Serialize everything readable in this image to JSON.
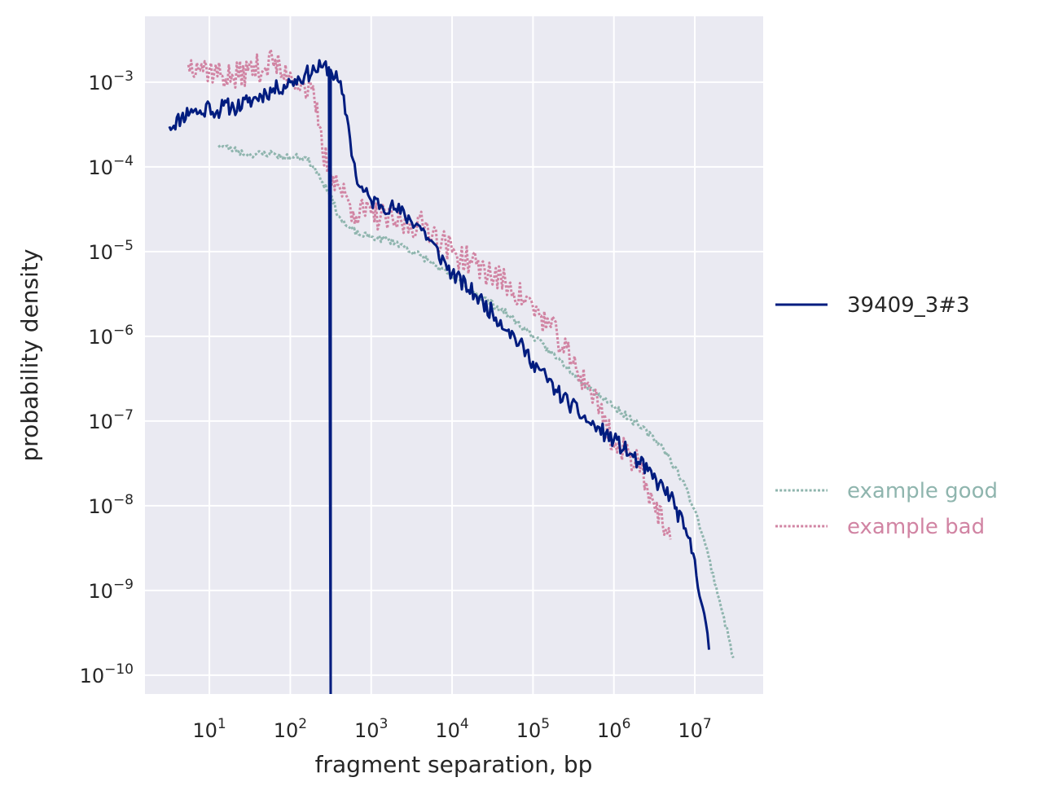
{
  "chart_data": {
    "type": "line",
    "title": "",
    "xlabel": "fragment separation, bp",
    "ylabel": "probability density",
    "xscale": "log",
    "yscale": "log",
    "xlim": [
      1.6,
      70000000
    ],
    "ylim": [
      6e-11,
      0.006
    ],
    "grid": true,
    "background": "#eaeaf2",
    "x_ticks": [
      {
        "value": 10,
        "base": "10",
        "exp": "1"
      },
      {
        "value": 100,
        "base": "10",
        "exp": "2"
      },
      {
        "value": 1000,
        "base": "10",
        "exp": "3"
      },
      {
        "value": 10000,
        "base": "10",
        "exp": "4"
      },
      {
        "value": 100000,
        "base": "10",
        "exp": "5"
      },
      {
        "value": 1000000,
        "base": "10",
        "exp": "6"
      },
      {
        "value": 10000000,
        "base": "10",
        "exp": "7"
      }
    ],
    "y_ticks": [
      {
        "value": 0.001,
        "base": "10",
        "exp": "−3"
      },
      {
        "value": 0.0001,
        "base": "10",
        "exp": "−4"
      },
      {
        "value": 1e-05,
        "base": "10",
        "exp": "−5"
      },
      {
        "value": 1e-06,
        "base": "10",
        "exp": "−6"
      },
      {
        "value": 1e-07,
        "base": "10",
        "exp": "−7"
      },
      {
        "value": 1e-08,
        "base": "10",
        "exp": "−8"
      },
      {
        "value": 1e-09,
        "base": "10",
        "exp": "−9"
      },
      {
        "value": 1e-10,
        "base": "10",
        "exp": "−10"
      }
    ],
    "legend_placement": "right",
    "legend_groups": [
      {
        "position": "center-right",
        "entries": [
          0
        ]
      },
      {
        "position": "lower-right",
        "entries": [
          1,
          2
        ]
      }
    ],
    "series": [
      {
        "name": "39409_3#3",
        "color": "#001c7f",
        "style": "solid",
        "width": 3,
        "noise": 0.1,
        "seed": 11,
        "points": [
          [
            3.2,
            0.0003
          ],
          [
            4.5,
            0.00038
          ],
          [
            6.0,
            0.00048
          ],
          [
            8.0,
            0.00042
          ],
          [
            10.0,
            0.00055
          ],
          [
            12.0,
            0.00043
          ],
          [
            15.0,
            0.00053
          ],
          [
            20.0,
            0.0005
          ],
          [
            30.0,
            0.00058
          ],
          [
            50.0,
            0.00075
          ],
          [
            70.0,
            0.00085
          ],
          [
            100.0,
            0.001
          ],
          [
            150.0,
            0.0012
          ],
          [
            200.0,
            0.0014
          ],
          [
            250.0,
            0.0015
          ],
          [
            300.0,
            0.0015
          ],
          [
            316.0,
            5e-11
          ],
          [
            316.0,
            0.0014
          ],
          [
            400.0,
            0.001
          ],
          [
            500.0,
            0.0004
          ],
          [
            600.0,
            0.00012
          ],
          [
            700.0,
            6e-05
          ],
          [
            1000.0,
            4e-05
          ],
          [
            2000.0,
            3.2e-05
          ],
          [
            4000.0,
            2e-05
          ],
          [
            10000.0,
            5.5e-06
          ],
          [
            20000.0,
            3e-06
          ],
          [
            50000.0,
            1.2e-06
          ],
          [
            100000.0,
            5e-07
          ],
          [
            200000.0,
            2.2e-07
          ],
          [
            500000.0,
            9.5e-08
          ],
          [
            1000000.0,
            6e-08
          ],
          [
            2000000.0,
            3.3e-08
          ],
          [
            5000000.0,
            1.3e-08
          ],
          [
            8000000.0,
            4.5e-09
          ],
          [
            10000000.0,
            2.3e-09
          ],
          [
            15000000.0,
            2e-10
          ]
        ]
      },
      {
        "name": "example good",
        "color": "#8fb5ae",
        "style": "dotted",
        "width": 3,
        "noise": 0.04,
        "seed": 23,
        "points": [
          [
            13.0,
            0.00018
          ],
          [
            20.0,
            0.00016
          ],
          [
            30.0,
            0.00014
          ],
          [
            60.0,
            0.000145
          ],
          [
            80.0,
            0.00013
          ],
          [
            100.0,
            0.00013
          ],
          [
            150.0,
            0.00013
          ],
          [
            200.0,
            0.0001
          ],
          [
            300.0,
            5e-05
          ],
          [
            400.0,
            2.6e-05
          ],
          [
            500.0,
            2e-05
          ],
          [
            700.0,
            1.6e-05
          ],
          [
            1000.0,
            1.5e-05
          ],
          [
            2000.0,
            1.3e-05
          ],
          [
            5000.0,
            8e-06
          ],
          [
            10000.0,
            5e-06
          ],
          [
            20000.0,
            3.2e-06
          ],
          [
            50000.0,
            1.8e-06
          ],
          [
            100000.0,
            1e-06
          ],
          [
            200000.0,
            5.5e-07
          ],
          [
            500000.0,
            2.5e-07
          ],
          [
            1000000.0,
            1.5e-07
          ],
          [
            2000000.0,
            9e-08
          ],
          [
            4000000.0,
            5e-08
          ],
          [
            7000000.0,
            2e-08
          ],
          [
            10000000.0,
            9e-09
          ],
          [
            13000000.0,
            4e-09
          ],
          [
            20000000.0,
            8e-10
          ],
          [
            30000000.0,
            1.6e-10
          ]
        ]
      },
      {
        "name": "example bad",
        "color": "#d184a3",
        "style": "dotted",
        "width": 3,
        "noise": 0.17,
        "seed": 37,
        "points": [
          [
            5.5,
            0.0016
          ],
          [
            7.0,
            0.0017
          ],
          [
            10.0,
            0.0014
          ],
          [
            20.0,
            0.0011
          ],
          [
            30.0,
            0.0014
          ],
          [
            50.0,
            0.0015
          ],
          [
            60.0,
            0.0019
          ],
          [
            80.0,
            0.0012
          ],
          [
            100.0,
            0.0013
          ],
          [
            150.0,
            0.0009
          ],
          [
            200.0,
            0.0006
          ],
          [
            230.0,
            0.0003
          ],
          [
            250.0,
            0.00015
          ],
          [
            300.0,
            0.0001
          ],
          [
            400.0,
            6e-05
          ],
          [
            600.0,
            3e-05
          ],
          [
            1000.0,
            2.8e-05
          ],
          [
            2000.0,
            2.2e-05
          ],
          [
            5000.0,
            2e-05
          ],
          [
            10000.0,
            1e-05
          ],
          [
            20000.0,
            7e-06
          ],
          [
            50000.0,
            4e-06
          ],
          [
            100000.0,
            2.2e-06
          ],
          [
            200000.0,
            1e-06
          ],
          [
            300000.0,
            5e-07
          ],
          [
            500000.0,
            2.5e-07
          ],
          [
            800000.0,
            1e-07
          ],
          [
            1000000.0,
            5e-08
          ],
          [
            2000000.0,
            3.5e-08
          ],
          [
            3000000.0,
            1.2e-08
          ],
          [
            4000000.0,
            6e-09
          ],
          [
            5000000.0,
            4e-09
          ]
        ]
      }
    ]
  }
}
